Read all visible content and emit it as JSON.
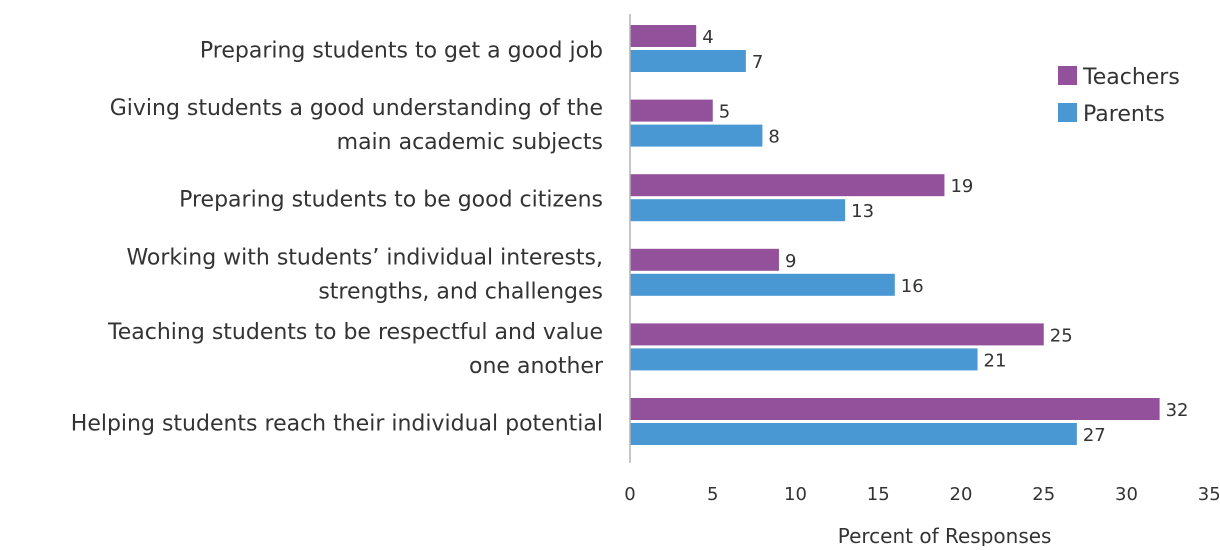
{
  "chart_data": {
    "type": "bar",
    "orientation": "horizontal",
    "categories": [
      [
        "Preparing students to get a good job"
      ],
      [
        "Giving students a good understanding of the",
        "main academic subjects"
      ],
      [
        "Preparing students to be good citizens"
      ],
      [
        "Working with students’ individual interests,",
        "strengths, and challenges"
      ],
      [
        "Teaching students to be respectful and value",
        "one another"
      ],
      [
        "Helping students reach their individual potential"
      ]
    ],
    "series": [
      {
        "name": "Teachers",
        "color": "#94519b",
        "values": [
          4,
          5,
          19,
          9,
          25,
          32
        ]
      },
      {
        "name": "Parents",
        "color": "#4a98d3",
        "values": [
          7,
          8,
          13,
          16,
          21,
          27
        ]
      }
    ],
    "xlabel": "Percent of Responses",
    "xlim": [
      0,
      35
    ],
    "xticks": [
      "0",
      "5",
      "10",
      "15",
      "20",
      "25",
      "30",
      "35"
    ],
    "grid": false,
    "legend": "top-right",
    "data_labels": true
  }
}
